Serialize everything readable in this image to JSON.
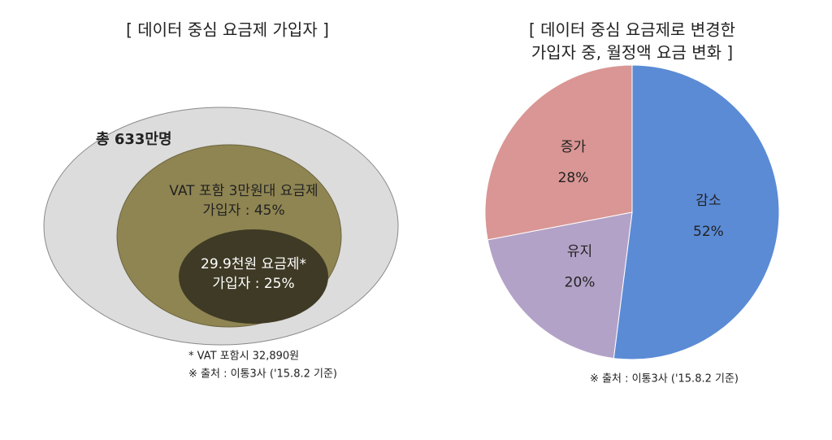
{
  "diagram": {
    "title": "[ 데이터 중심 요금제 가입자 ]",
    "outer_label": "총 633만명",
    "middle_label": [
      "VAT 포함 3만원대 요금제",
      "가입자 : 45%"
    ],
    "inner_label": [
      "29.9천원 요금제*",
      "가입자 : 25%"
    ],
    "notes": [
      "* VAT 포함시 32,890원",
      "※ 출처 : 이통3사 ('15.8.2 기준)"
    ]
  },
  "chart_data": {
    "type": "pie",
    "title": [
      "[ 데이터 중심 요금제로 변경한",
      "가입자 중, 월정액 요금 변화 ]"
    ],
    "categories": [
      "감소",
      "유지",
      "증가"
    ],
    "values": [
      52,
      20,
      28
    ],
    "value_labels": [
      "52%",
      "20%",
      "28%"
    ],
    "colors": [
      "#5b8bd5",
      "#b3a2c7",
      "#d99694"
    ],
    "note": "※ 출처 : 이통3사 ('15.8.2 기준)"
  }
}
